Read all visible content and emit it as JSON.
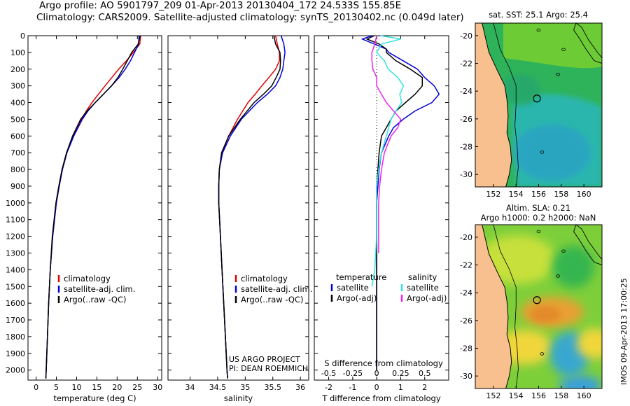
{
  "header": {
    "line1": "Argo profile: AO 5901797_209 01-Apr-2013 20130404_172 24.533S 155.85E",
    "line2": "Climatology: CARS2009. Satellite-adjusted climatology: synTS_20130402.nc (0.049d later)"
  },
  "colors": {
    "climatology": "#e00000",
    "satellite": "#0000dd",
    "argo": "#000000",
    "salinity_satellite": "#33e0e0",
    "salinity_argo": "#ee22ee",
    "land": "#f9c08f"
  },
  "credits": {
    "project": "US ARGO PROJECT",
    "pi": "PI: DEAN ROEMMICH",
    "imos": "IMOS 09-Apr-2013 17:00:25"
  },
  "chart_data": [
    {
      "type": "line",
      "panel": "temperature",
      "xlabel": "temperature (deg C)",
      "ylabel": "",
      "xlim": [
        -2,
        31
      ],
      "ylim": [
        2060,
        0
      ],
      "xticks": [
        0,
        5,
        10,
        15,
        20,
        25,
        30
      ],
      "yticks": [
        0,
        100,
        200,
        300,
        400,
        500,
        600,
        700,
        800,
        900,
        1000,
        1100,
        1200,
        1300,
        1400,
        1500,
        1600,
        1700,
        1800,
        1900,
        2000
      ],
      "legend": [
        "climatology",
        "satellite-adj. clim.",
        "Argo(..raw -QC)"
      ],
      "legend_position": "lower-center",
      "series": [
        {
          "name": "climatology",
          "color": "#e00000",
          "depth": [
            0,
            50,
            100,
            150,
            200,
            250,
            300,
            350,
            400,
            450,
            500,
            600,
            700,
            800,
            900,
            1000,
            1200,
            1400,
            1600,
            1800,
            2000,
            2050
          ],
          "values": [
            25.8,
            25.6,
            24.0,
            22.3,
            20.4,
            18.7,
            17.0,
            15.4,
            13.8,
            12.4,
            11.2,
            9.1,
            7.6,
            6.5,
            5.7,
            5.0,
            4.1,
            3.5,
            3.1,
            2.8,
            2.5,
            2.4
          ]
        },
        {
          "name": "satellite-adj. clim.",
          "color": "#0000dd",
          "depth": [
            0,
            50,
            100,
            150,
            200,
            250,
            300,
            350,
            400,
            450,
            500,
            600,
            700,
            800,
            900,
            1000,
            1200,
            1400,
            1600,
            1800,
            2000,
            2050
          ],
          "values": [
            25.4,
            25.3,
            24.3,
            23.3,
            22.0,
            20.5,
            18.6,
            16.6,
            14.6,
            12.8,
            11.4,
            9.3,
            7.6,
            6.5,
            5.7,
            5.0,
            4.1,
            3.5,
            3.1,
            2.8,
            2.5,
            2.4
          ]
        },
        {
          "name": "Argo(..raw -QC)",
          "color": "#000000",
          "depth": [
            0,
            50,
            100,
            150,
            200,
            250,
            300,
            350,
            400,
            450,
            500,
            600,
            700,
            800,
            900,
            1000,
            1200,
            1400,
            1600,
            1800,
            2000,
            2050
          ],
          "values": [
            25.7,
            25.2,
            23.6,
            22.5,
            21.4,
            20.2,
            18.6,
            16.6,
            14.6,
            12.6,
            11.0,
            9.0,
            7.5,
            6.4,
            5.6,
            4.9,
            4.0,
            3.5,
            3.1,
            2.8,
            2.5,
            2.4
          ]
        }
      ]
    },
    {
      "type": "line",
      "panel": "salinity",
      "xlabel": "salinity",
      "ylabel": "",
      "xlim": [
        33.6,
        36.15
      ],
      "ylim": [
        2060,
        0
      ],
      "xticks": [
        34,
        34.5,
        35,
        35.5,
        36
      ],
      "legend": [
        "climatology",
        "satellite-adj. clim.",
        "Argo(..raw -QC)"
      ],
      "legend_position": "lower-center",
      "series": [
        {
          "name": "climatology",
          "color": "#e00000",
          "depth": [
            0,
            50,
            100,
            150,
            200,
            250,
            300,
            350,
            400,
            500,
            600,
            700,
            800,
            900,
            1000,
            1200,
            1400,
            1600,
            1800,
            2000,
            2050
          ],
          "values": [
            35.55,
            35.58,
            35.62,
            35.62,
            35.55,
            35.43,
            35.3,
            35.18,
            35.05,
            34.86,
            34.7,
            34.58,
            34.53,
            34.52,
            34.52,
            34.55,
            34.58,
            34.61,
            34.64,
            34.67,
            34.68
          ]
        },
        {
          "name": "satellite-adj. clim.",
          "color": "#0000dd",
          "depth": [
            0,
            50,
            100,
            150,
            200,
            250,
            300,
            350,
            400,
            500,
            600,
            700,
            800,
            900,
            1000,
            1200,
            1400,
            1600,
            1800,
            2000,
            2050
          ],
          "values": [
            35.65,
            35.7,
            35.72,
            35.7,
            35.68,
            35.63,
            35.55,
            35.4,
            35.22,
            34.93,
            34.73,
            34.59,
            34.53,
            34.52,
            34.52,
            34.55,
            34.58,
            34.61,
            34.64,
            34.67,
            34.68
          ]
        },
        {
          "name": "Argo(..raw -QC)",
          "color": "#000000",
          "depth": [
            0,
            50,
            100,
            150,
            200,
            250,
            300,
            350,
            400,
            500,
            600,
            700,
            800,
            900,
            1000,
            1200,
            1400,
            1600,
            1800,
            2000,
            2050
          ],
          "values": [
            35.52,
            35.55,
            35.63,
            35.64,
            35.63,
            35.56,
            35.48,
            35.33,
            35.16,
            34.91,
            34.7,
            34.57,
            34.53,
            34.52,
            34.52,
            34.55,
            34.58,
            34.61,
            34.64,
            34.67,
            34.68
          ]
        }
      ]
    },
    {
      "type": "line",
      "panel": "difference",
      "xlabel": "T difference from climatology",
      "xlabel_top": "S difference from climatology",
      "xlim": [
        -2.6,
        3.0
      ],
      "ylim": [
        2060,
        0
      ],
      "xticks": [
        -2,
        -1,
        0,
        1,
        2
      ],
      "xticks_S": [
        -0.5,
        -0.25,
        0,
        0.25,
        0.5
      ],
      "legend_titles": [
        "temperature",
        "salinity"
      ],
      "legend": [
        "satellite",
        "Argo(-adj)",
        "satellite",
        "Argo(-adj)"
      ],
      "legend_position": "lower-center",
      "series": [
        {
          "name": "satellite",
          "group": "temperature",
          "color": "#0000dd",
          "depth": [
            0,
            20,
            50,
            80,
            100,
            150,
            200,
            250,
            300,
            350,
            400,
            450,
            500,
            550,
            600,
            700,
            800,
            900,
            1000,
            1200,
            1400,
            1600,
            1800,
            2000
          ],
          "values": [
            -0.2,
            -0.6,
            -0.1,
            0.4,
            0.5,
            1.1,
            1.7,
            2.0,
            2.4,
            2.6,
            2.3,
            1.6,
            1.1,
            0.7,
            0.5,
            0.2,
            0.1,
            0.05,
            0.0,
            0.0,
            0.0,
            0.0,
            0.0,
            0.0
          ]
        },
        {
          "name": "Argo(-adj)",
          "group": "temperature",
          "color": "#000000",
          "depth": [
            0,
            20,
            50,
            80,
            100,
            150,
            200,
            250,
            300,
            350,
            400,
            450,
            500,
            550,
            600,
            700,
            800,
            900,
            1000,
            1200,
            1400,
            1600,
            1800,
            2000
          ],
          "values": [
            -0.1,
            -0.4,
            0.1,
            0.4,
            0.4,
            0.8,
            1.4,
            1.9,
            1.9,
            1.6,
            1.2,
            0.8,
            0.6,
            0.4,
            0.2,
            0.1,
            0.05,
            0.0,
            0.0,
            0.0,
            0.0,
            0.0,
            0.0,
            0.0
          ]
        },
        {
          "name": "satellite",
          "group": "salinity",
          "color": "#33e0e0",
          "depth": [
            0,
            20,
            50,
            100,
            150,
            200,
            250,
            300,
            350,
            400,
            450,
            500,
            600,
            700,
            800,
            900,
            1000,
            1200,
            1400,
            1500
          ],
          "values": [
            0.04,
            0.25,
            0.05,
            0.0,
            0.08,
            0.12,
            0.22,
            0.28,
            0.24,
            0.26,
            0.2,
            0.15,
            0.1,
            0.05,
            0.02,
            0.0,
            0.0,
            0.0,
            -0.02,
            -0.05
          ]
        },
        {
          "name": "Argo(-adj)",
          "group": "salinity",
          "color": "#ee22ee",
          "depth": [
            0,
            50,
            100,
            150,
            200,
            250,
            300,
            400,
            500,
            550,
            600,
            700,
            800,
            900,
            1000,
            1100,
            1200,
            1300
          ],
          "values": [
            0.0,
            -0.02,
            -0.05,
            -0.05,
            -0.04,
            0.0,
            0.0,
            0.1,
            0.25,
            0.22,
            0.15,
            0.08,
            0.05,
            0.03,
            0.02,
            0.02,
            0.02,
            0.02
          ]
        }
      ]
    },
    {
      "type": "heatmap",
      "panel": "sst-map",
      "title": "sat. SST: 25.1  Argo: 25.4",
      "xlim": [
        150.4,
        161.6
      ],
      "ylim": [
        -30.9,
        -19.1
      ],
      "xticks": [
        152,
        154,
        156,
        158,
        160
      ],
      "yticks": [
        -20,
        -22,
        -24,
        -26,
        -28,
        -30
      ],
      "float": {
        "lon": 155.85,
        "lat": -24.533
      }
    },
    {
      "type": "heatmap",
      "panel": "sla-map",
      "title_line1": "Altim. SLA: 0.21",
      "title_line2": "Argo h1000: 0.2 h2000: NaN",
      "xlim": [
        150.4,
        161.6
      ],
      "ylim": [
        -30.9,
        -19.1
      ],
      "xticks": [
        152,
        154,
        156,
        158,
        160
      ],
      "yticks": [
        -20,
        -22,
        -24,
        -26,
        -28,
        -30
      ],
      "float": {
        "lon": 155.85,
        "lat": -24.533
      }
    }
  ]
}
